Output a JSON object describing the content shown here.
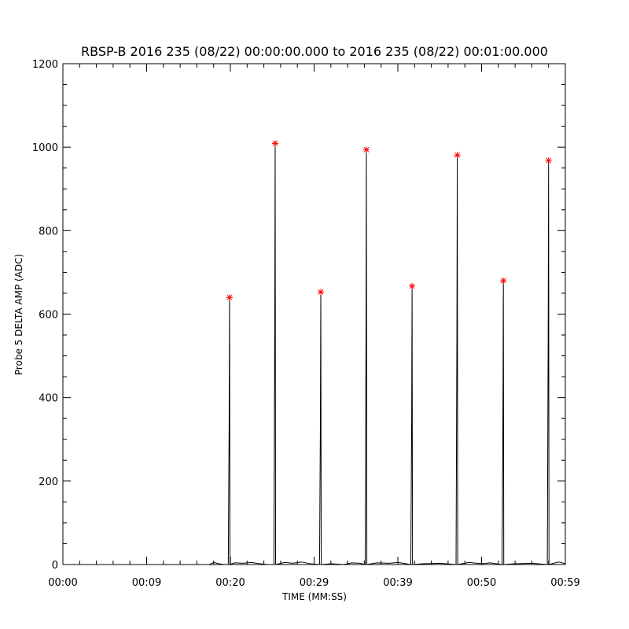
{
  "chart_data": {
    "type": "line",
    "title": "RBSP-B 2016 235 (08/22) 00:00:00.000 to 2016 235 (08/22) 00:01:00.000",
    "xlabel": "TIME (MM:SS)",
    "ylabel": "Probe 5 DELTA AMP (ADC)",
    "xlim": [
      0,
      60
    ],
    "xticks": [
      {
        "value": 0,
        "label": "00:00"
      },
      {
        "value": 10,
        "label": "00:09"
      },
      {
        "value": 20,
        "label": "00:20"
      },
      {
        "value": 30,
        "label": "00:29"
      },
      {
        "value": 40,
        "label": "00:39"
      },
      {
        "value": 50,
        "label": "00:50"
      },
      {
        "value": 60,
        "label": "00:59"
      }
    ],
    "ylim": [
      0,
      1200
    ],
    "yticks": [
      0,
      200,
      400,
      600,
      800,
      1000,
      1200
    ],
    "series": [
      {
        "color": "#000000",
        "x": [
          0,
          17.5,
          18,
          18.6,
          19.3,
          19.75,
          19.85,
          19.9,
          19.95,
          20.5,
          21.5,
          22.5,
          23.5,
          24.5,
          25.2,
          25.3,
          25.35,
          25.4,
          26.5,
          27.5,
          28.5,
          29.5,
          30.65,
          30.75,
          30.8,
          30.85,
          32,
          33.5,
          34.5,
          35.5,
          36.1,
          36.2,
          36.24,
          36.3,
          37.5,
          39,
          40,
          41.55,
          41.65,
          41.7,
          41.75,
          43,
          45,
          46.95,
          47.05,
          47.1,
          47.15,
          48.5,
          50,
          51,
          52.45,
          52.55,
          52.6,
          52.65,
          54,
          56,
          57.85,
          57.95,
          58,
          58.05,
          59.2,
          60
        ],
        "values": [
          0,
          0,
          5,
          2,
          0,
          0,
          330,
          640,
          0,
          4,
          3,
          5,
          2,
          0,
          0,
          570,
          1009,
          0,
          5,
          3,
          6,
          2,
          0,
          340,
          653,
          0,
          2,
          0,
          4,
          3,
          0,
          555,
          994,
          0,
          4,
          3,
          5,
          0,
          350,
          667,
          0,
          2,
          3,
          0,
          545,
          981,
          0,
          5,
          2,
          4,
          0,
          360,
          680,
          0,
          2,
          3,
          0,
          535,
          968,
          0,
          6,
          2
        ]
      },
      {
        "color": "#ff0000",
        "marker": "asterisk",
        "x": [
          19.9,
          25.35,
          30.8,
          36.24,
          41.7,
          47.1,
          52.6,
          58
        ],
        "values": [
          640,
          1009,
          653,
          994,
          667,
          981,
          680,
          968
        ]
      }
    ]
  }
}
